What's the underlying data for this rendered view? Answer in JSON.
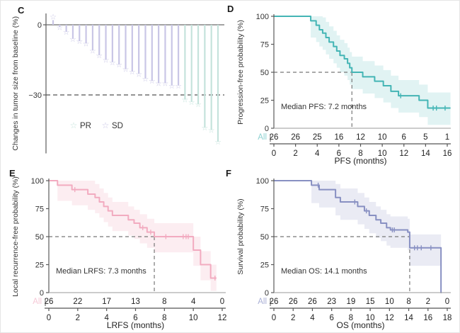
{
  "panels": {
    "c": {
      "label": "C"
    },
    "d": {
      "label": "D"
    },
    "e": {
      "label": "E"
    },
    "f": {
      "label": "F"
    }
  },
  "chart_data": [
    {
      "id": "C",
      "type": "bar",
      "variant": "waterfall",
      "ylabel": "Changes in tumor size from baseline (%)",
      "yticks": [
        {
          "value": 0,
          "label": "0"
        },
        {
          "value": -30,
          "label": "−30"
        }
      ],
      "ylim": [
        -55,
        5
      ],
      "reference_line": {
        "value": -30,
        "style": "dashed"
      },
      "legend": [
        {
          "label": "PR",
          "symbol": "star",
          "color": "#c5e3dc"
        },
        {
          "label": "SD",
          "symbol": "star",
          "color": "#c9c6e6"
        }
      ],
      "series": [
        {
          "name": "SD",
          "color": "#c9c6e6",
          "values": [
            2,
            -1,
            -3,
            -6,
            -7,
            -8,
            -11,
            -13,
            -15,
            -16,
            -17,
            -19,
            -20,
            -21,
            -23,
            -24,
            -25,
            -25,
            -26,
            -26
          ]
        },
        {
          "name": "PR",
          "color": "#c5e3dc",
          "values": [
            -32,
            -33,
            -34,
            -44,
            -45,
            -50
          ]
        }
      ]
    },
    {
      "id": "D",
      "type": "line",
      "variant": "kaplan-meier",
      "ylabel": "Progression-free probability (%)",
      "xlabel": "PFS (months)",
      "yticks": [
        0,
        25,
        50,
        75,
        100
      ],
      "xticks": [
        0,
        2,
        4,
        6,
        8,
        10,
        12,
        14,
        16
      ],
      "color": "#44b5b5",
      "band_color": "rgba(68,181,181,0.16)",
      "risk_row": {
        "label": "All",
        "label_color": "#8fd2d2",
        "counts": [
          26,
          26,
          25,
          16,
          12,
          10,
          6,
          5,
          1
        ]
      },
      "median": {
        "x": 7.2,
        "label": "Median PFS: 7.2 months"
      },
      "steps": [
        [
          0,
          100
        ],
        [
          3.4,
          96
        ],
        [
          3.9,
          92
        ],
        [
          4.2,
          88
        ],
        [
          4.5,
          85
        ],
        [
          4.8,
          81
        ],
        [
          5.1,
          77
        ],
        [
          5.5,
          73
        ],
        [
          5.8,
          69
        ],
        [
          6.1,
          65
        ],
        [
          6.5,
          62
        ],
        [
          6.8,
          58
        ],
        [
          7.0,
          54
        ],
        [
          7.2,
          50
        ],
        [
          8.2,
          46
        ],
        [
          9.3,
          42
        ],
        [
          10.1,
          38
        ],
        [
          10.8,
          33
        ],
        [
          11.5,
          29
        ],
        [
          13.4,
          25
        ],
        [
          14.2,
          18
        ]
      ],
      "end_x": 16.3,
      "censors": [
        [
          11.7,
          29
        ],
        [
          14.7,
          18
        ],
        [
          15.0,
          18
        ],
        [
          15.8,
          18
        ]
      ],
      "band": {
        "upper_offset": 14,
        "lower_offset": 15,
        "start_x": 3.4
      }
    },
    {
      "id": "E",
      "type": "line",
      "variant": "kaplan-meier",
      "ylabel": "Local recurrence-free probability (%)",
      "xlabel": "LRFS (months)",
      "yticks": [
        0,
        25,
        50,
        75,
        100
      ],
      "xticks": [
        0,
        2,
        4,
        6,
        8,
        10,
        12
      ],
      "color": "#f2abc0",
      "band_color": "rgba(242,171,192,0.22)",
      "risk_row": {
        "label": "All",
        "label_color": "#f6c9d7",
        "counts": [
          26,
          22,
          17,
          13,
          8,
          4,
          0
        ]
      },
      "median": {
        "x": 7.3,
        "label": "Median LRFS: 7.3 months"
      },
      "steps": [
        [
          0,
          100
        ],
        [
          0.6,
          96
        ],
        [
          1.6,
          92
        ],
        [
          2.7,
          88
        ],
        [
          3.2,
          85
        ],
        [
          3.5,
          81
        ],
        [
          3.8,
          77
        ],
        [
          4.1,
          73
        ],
        [
          4.4,
          69
        ],
        [
          5.5,
          65
        ],
        [
          5.9,
          62
        ],
        [
          6.3,
          58
        ],
        [
          6.8,
          54
        ],
        [
          7.3,
          50
        ],
        [
          10.0,
          38
        ],
        [
          10.5,
          25
        ],
        [
          11.2,
          13
        ]
      ],
      "end_x": 11.6,
      "censors": [
        [
          1.8,
          92
        ],
        [
          6.5,
          58
        ],
        [
          7.05,
          54
        ],
        [
          8.1,
          50
        ],
        [
          9.3,
          50
        ],
        [
          9.5,
          50
        ],
        [
          9.65,
          50
        ],
        [
          11.5,
          13
        ]
      ],
      "band": {
        "upper_offset": 12,
        "lower_offset": 14,
        "start_x": 0.6
      }
    },
    {
      "id": "F",
      "type": "line",
      "variant": "kaplan-meier",
      "ylabel": "Survival probability (%)",
      "xlabel": "OS (months)",
      "yticks": [
        0,
        25,
        50,
        75,
        100
      ],
      "xticks": [
        0,
        2,
        4,
        6,
        8,
        10,
        12,
        14,
        16,
        18
      ],
      "color": "#8890c2",
      "band_color": "rgba(136,144,194,0.18)",
      "risk_row": {
        "label": "All",
        "label_color": "#aab0d6",
        "counts": [
          26,
          26,
          26,
          23,
          19,
          15,
          10,
          8,
          2,
          0
        ]
      },
      "median": {
        "x": 14.1,
        "label": "Median OS: 14.1 months"
      },
      "steps": [
        [
          0,
          100
        ],
        [
          3.9,
          96
        ],
        [
          4.7,
          92
        ],
        [
          6.4,
          85
        ],
        [
          6.9,
          81
        ],
        [
          8.7,
          77
        ],
        [
          9.4,
          73
        ],
        [
          9.9,
          69
        ],
        [
          10.6,
          65
        ],
        [
          11.1,
          62
        ],
        [
          11.7,
          58
        ],
        [
          12.1,
          56
        ],
        [
          13.9,
          54
        ],
        [
          14.1,
          40
        ],
        [
          17.35,
          0
        ]
      ],
      "end_x": 17.4,
      "censors": [
        [
          4.6,
          96
        ],
        [
          8.4,
          81
        ],
        [
          9.6,
          73
        ],
        [
          12.3,
          56
        ],
        [
          12.5,
          56
        ],
        [
          14.6,
          40
        ],
        [
          14.9,
          40
        ],
        [
          15.3,
          40
        ],
        [
          16.3,
          40
        ]
      ],
      "band": {
        "upper_offset": 12,
        "lower_offset": 16,
        "start_x": 3.9
      }
    }
  ]
}
